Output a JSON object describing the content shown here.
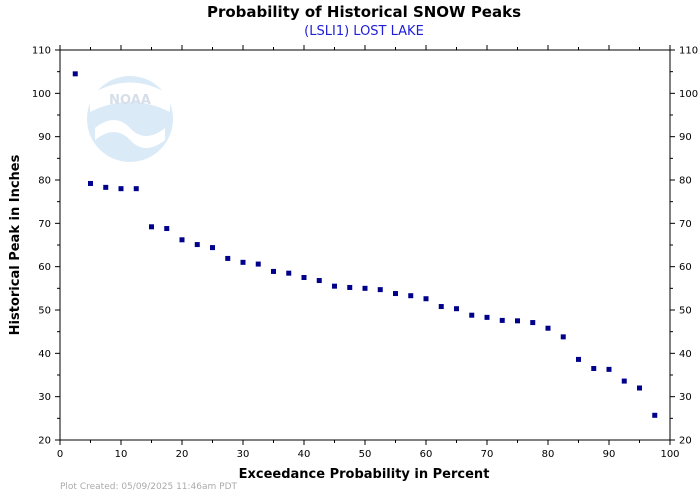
{
  "chart_data": {
    "type": "scatter",
    "title": "Probability of Historical SNOW Peaks",
    "subtitle": "(LSLI1) LOST LAKE",
    "xlabel": "Exceedance Probability in Percent",
    "ylabel": "Historical Peak in Inches",
    "xlim": [
      0,
      100
    ],
    "ylim": [
      20,
      110
    ],
    "x_ticks": [
      "0",
      "10",
      "20",
      "30",
      "40",
      "50",
      "60",
      "70",
      "80",
      "90",
      "100"
    ],
    "y_ticks": [
      "20",
      "30",
      "40",
      "50",
      "60",
      "70",
      "80",
      "90",
      "100",
      "110"
    ],
    "grid": false,
    "marker_color": "#00008b",
    "points": [
      {
        "x": 2.5,
        "y": 104.5
      },
      {
        "x": 5.0,
        "y": 79.2
      },
      {
        "x": 7.5,
        "y": 78.3
      },
      {
        "x": 10.0,
        "y": 78.0
      },
      {
        "x": 12.5,
        "y": 78.0
      },
      {
        "x": 15.0,
        "y": 69.2
      },
      {
        "x": 17.5,
        "y": 68.8
      },
      {
        "x": 20.0,
        "y": 66.2
      },
      {
        "x": 22.5,
        "y": 65.1
      },
      {
        "x": 25.0,
        "y": 64.4
      },
      {
        "x": 27.5,
        "y": 61.9
      },
      {
        "x": 30.0,
        "y": 61.0
      },
      {
        "x": 32.5,
        "y": 60.6
      },
      {
        "x": 35.0,
        "y": 58.9
      },
      {
        "x": 37.5,
        "y": 58.5
      },
      {
        "x": 40.0,
        "y": 57.5
      },
      {
        "x": 42.5,
        "y": 56.8
      },
      {
        "x": 45.0,
        "y": 55.5
      },
      {
        "x": 47.5,
        "y": 55.2
      },
      {
        "x": 50.0,
        "y": 55.0
      },
      {
        "x": 52.5,
        "y": 54.7
      },
      {
        "x": 55.0,
        "y": 53.8
      },
      {
        "x": 57.5,
        "y": 53.3
      },
      {
        "x": 60.0,
        "y": 52.6
      },
      {
        "x": 62.5,
        "y": 50.8
      },
      {
        "x": 65.0,
        "y": 50.3
      },
      {
        "x": 67.5,
        "y": 48.8
      },
      {
        "x": 70.0,
        "y": 48.3
      },
      {
        "x": 72.5,
        "y": 47.6
      },
      {
        "x": 75.0,
        "y": 47.5
      },
      {
        "x": 77.5,
        "y": 47.1
      },
      {
        "x": 80.0,
        "y": 45.8
      },
      {
        "x": 82.5,
        "y": 43.8
      },
      {
        "x": 85.0,
        "y": 38.6
      },
      {
        "x": 87.5,
        "y": 36.5
      },
      {
        "x": 90.0,
        "y": 36.3
      },
      {
        "x": 92.5,
        "y": 33.6
      },
      {
        "x": 95.0,
        "y": 32.0
      },
      {
        "x": 97.5,
        "y": 25.7
      }
    ]
  },
  "logo": {
    "text": "NOAA",
    "icon": "noaa-logo-icon"
  },
  "footer": {
    "plot_created": "Plot Created: 05/09/2025 11:46am PDT"
  }
}
